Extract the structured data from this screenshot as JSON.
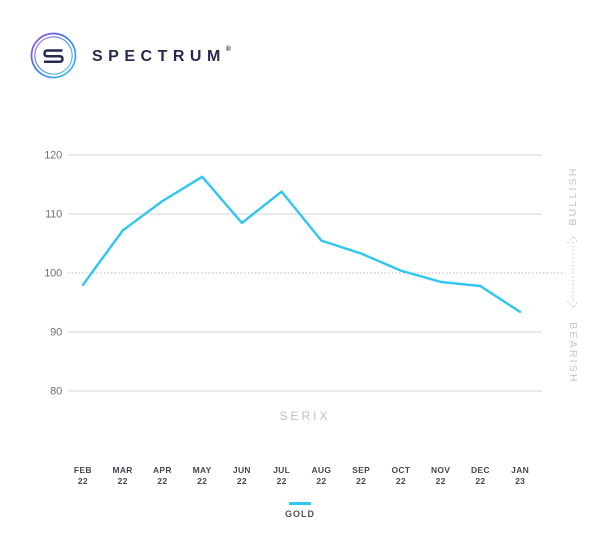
{
  "brand": {
    "name": "SPECTRUM",
    "registered_mark": "®",
    "monogram": "S",
    "text_color": "#262A4F",
    "logo_gradient": [
      "#9B4BDB",
      "#3D7CE6",
      "#3FC9F2"
    ]
  },
  "chart_data": {
    "type": "line",
    "title": "",
    "xlabel": "SERIX",
    "categories": [
      {
        "month": "FEB",
        "year": "22"
      },
      {
        "month": "MAR",
        "year": "22"
      },
      {
        "month": "APR",
        "year": "22"
      },
      {
        "month": "MAY",
        "year": "22"
      },
      {
        "month": "JUN",
        "year": "22"
      },
      {
        "month": "JUL",
        "year": "22"
      },
      {
        "month": "AUG",
        "year": "22"
      },
      {
        "month": "SEP",
        "year": "22"
      },
      {
        "month": "OCT",
        "year": "22"
      },
      {
        "month": "NOV",
        "year": "22"
      },
      {
        "month": "DEC",
        "year": "22"
      },
      {
        "month": "JAN",
        "year": "23"
      }
    ],
    "series": [
      {
        "name": "GOLD",
        "color": "#2FC5F2",
        "values": [
          98.0,
          107.2,
          112.2,
          116.3,
          108.5,
          113.8,
          105.5,
          103.3,
          100.4,
          98.5,
          97.8,
          93.4
        ]
      }
    ],
    "yticks": [
      120,
      110,
      100,
      90,
      80
    ],
    "ylim": [
      80,
      120
    ],
    "reference_line": 100,
    "grid": true,
    "legend": {
      "position": "bottom-center"
    },
    "right_axis_labels": {
      "top": "BULLISH",
      "bottom": "BEARISH"
    },
    "colors": {
      "gridline": "#DEDEDE",
      "reference_line": "#ABABAF",
      "tick_label": "#6F7075",
      "month_label": "#46474E",
      "axis_caption": "#BFBFC3",
      "sentiment_label": "#C5C5C9"
    }
  }
}
